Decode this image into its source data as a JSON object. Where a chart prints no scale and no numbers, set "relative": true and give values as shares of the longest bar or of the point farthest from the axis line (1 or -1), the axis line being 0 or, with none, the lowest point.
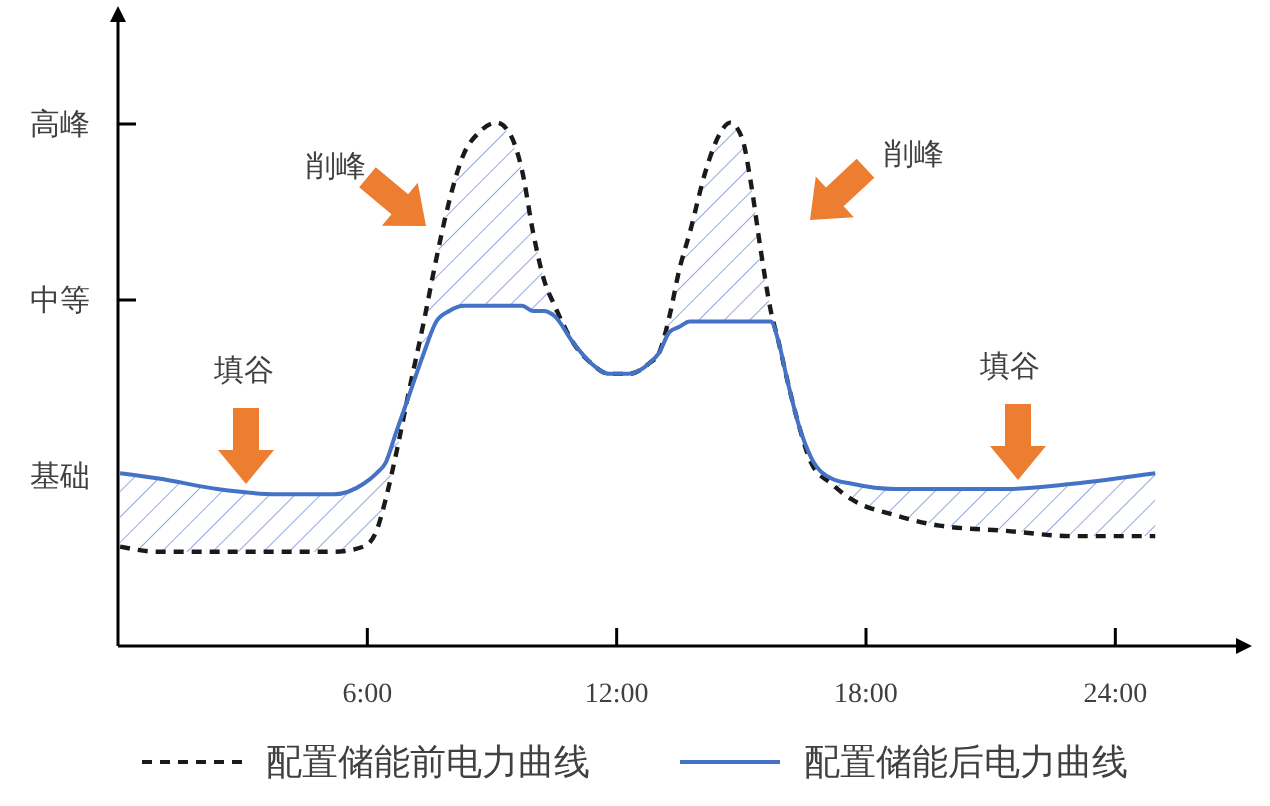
{
  "chart_data": {
    "type": "line",
    "relative": true,
    "legend": "bottom",
    "x": [
      0.05,
      0.98,
      2.39,
      3.8,
      5.2,
      5.91,
      6.22,
      6.44,
      6.7,
      7.01,
      7.36,
      7.66,
      7.97,
      8.32,
      8.67,
      9.11,
      9.42,
      9.72,
      9.99,
      10.25,
      10.51,
      10.95,
      11.39,
      11.82,
      12.29,
      12.78,
      13.02,
      13.27,
      13.51,
      13.76,
      14.15,
      14.49,
      14.73,
      15.02,
      15.22,
      15.46,
      15.71,
      15.9,
      16.1,
      16.39,
      16.68,
      17.17,
      17.66,
      18.7,
      19.77,
      21.38,
      22.98,
      24.96
    ],
    "xlim": [
      0,
      27
    ],
    "xticks": [
      {
        "value": 6,
        "label": "6:00"
      },
      {
        "value": 12,
        "label": "12:00"
      },
      {
        "value": 18,
        "label": "18:00"
      },
      {
        "value": 24,
        "label": "24:00"
      }
    ],
    "series": [
      {
        "name": "配置储能前电力曲线",
        "color": "#1a1a1a",
        "line_style": "dashed",
        "values": [
          0.19,
          0.18,
          0.18,
          0.18,
          0.18,
          0.19,
          0.22,
          0.28,
          0.37,
          0.49,
          0.62,
          0.74,
          0.85,
          0.94,
          0.98,
          1,
          0.98,
          0.91,
          0.79,
          0.7,
          0.65,
          0.58,
          0.54,
          0.52,
          0.52,
          0.54,
          0.56,
          0.63,
          0.72,
          0.79,
          0.91,
          0.98,
          1,
          0.97,
          0.89,
          0.76,
          0.64,
          0.58,
          0.51,
          0.42,
          0.35,
          0.31,
          0.28,
          0.25,
          0.23,
          0.22,
          0.21,
          0.21
        ]
      },
      {
        "name": "配置储能后电力曲线",
        "color": "#4472c4",
        "line_style": "solid",
        "values": [
          0.33,
          0.32,
          0.3,
          0.29,
          0.29,
          0.31,
          0.33,
          0.35,
          0.41,
          0.48,
          0.56,
          0.62,
          0.64,
          0.65,
          0.65,
          0.65,
          0.65,
          0.65,
          0.64,
          0.64,
          0.63,
          0.58,
          0.54,
          0.52,
          0.52,
          0.54,
          0.56,
          0.6,
          0.61,
          0.62,
          0.62,
          0.62,
          0.62,
          0.62,
          0.62,
          0.62,
          0.62,
          0.58,
          0.51,
          0.42,
          0.36,
          0.32,
          0.31,
          0.3,
          0.3,
          0.3,
          0.31,
          0.33
        ],
        "lower": [
          0.19,
          0.18,
          0.18,
          0.18,
          0.18,
          0.19,
          0.22,
          0.28,
          0.37,
          0.48,
          0.56,
          0.62,
          0.64,
          0.65,
          0.65,
          0.65,
          0.65,
          0.65,
          0.64,
          0.64,
          0.63,
          0.58,
          0.54,
          0.52,
          0.52,
          0.54,
          0.56,
          0.6,
          0.61,
          0.62,
          0.62,
          0.62,
          0.62,
          0.62,
          0.62,
          0.62,
          0.62,
          0.58,
          0.51,
          0.42,
          0.35,
          0.31,
          0.28,
          0.25,
          0.23,
          0.22,
          0.21,
          0.21
        ],
        "upper": [
          0.33,
          0.32,
          0.3,
          0.29,
          0.29,
          0.31,
          0.33,
          0.35,
          0.41,
          0.49,
          0.62,
          0.74,
          0.85,
          0.94,
          0.98,
          1,
          0.98,
          0.91,
          0.79,
          0.7,
          0.65,
          0.58,
          0.54,
          0.52,
          0.52,
          0.54,
          0.56,
          0.63,
          0.72,
          0.79,
          0.91,
          0.98,
          1,
          0.97,
          0.89,
          0.76,
          0.64,
          0.58,
          0.51,
          0.42,
          0.36,
          0.32,
          0.31,
          0.3,
          0.3,
          0.3,
          0.31,
          0.33
        ]
      }
    ],
    "annotations": [
      "填谷",
      "削峰",
      "削峰",
      "填谷",
      "基础",
      "中等",
      "高峰"
    ]
  }
}
